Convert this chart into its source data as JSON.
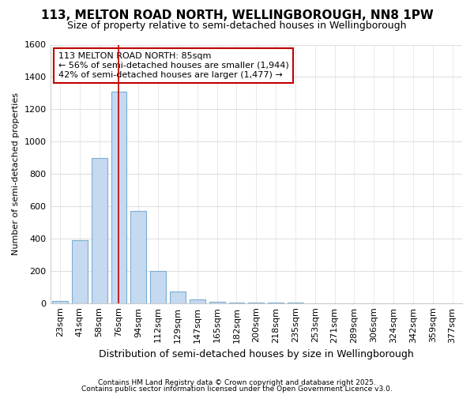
{
  "title": "113, MELTON ROAD NORTH, WELLINGBOROUGH, NN8 1PW",
  "subtitle": "Size of property relative to semi-detached houses in Wellingborough",
  "xlabel": "Distribution of semi-detached houses by size in Wellingborough",
  "ylabel": "Number of semi-detached properties",
  "categories": [
    "23sqm",
    "41sqm",
    "58sqm",
    "76sqm",
    "94sqm",
    "112sqm",
    "129sqm",
    "147sqm",
    "165sqm",
    "182sqm",
    "200sqm",
    "218sqm",
    "235sqm",
    "253sqm",
    "271sqm",
    "289sqm",
    "306sqm",
    "324sqm",
    "342sqm",
    "359sqm",
    "377sqm"
  ],
  "values": [
    15,
    390,
    900,
    1310,
    570,
    200,
    70,
    25,
    10,
    5,
    2,
    1,
    1,
    0,
    0,
    0,
    0,
    0,
    0,
    0,
    0
  ],
  "bar_facecolor": "#c5d9f0",
  "bar_edgecolor": "#7bafd4",
  "vline_x": 3,
  "vline_color": "#c00000",
  "annotation_text": "113 MELTON ROAD NORTH: 85sqm\n← 56% of semi-detached houses are smaller (1,944)\n42% of semi-detached houses are larger (1,477) →",
  "annotation_box_edgecolor": "#c00000",
  "ylim": [
    0,
    1600
  ],
  "yticks": [
    0,
    200,
    400,
    600,
    800,
    1000,
    1200,
    1400,
    1600
  ],
  "bg_color": "#ffffff",
  "plot_bg_color": "#ffffff",
  "grid_color": "#e0e0e0",
  "title_fontsize": 11,
  "subtitle_fontsize": 9,
  "tick_fontsize": 8,
  "ylabel_fontsize": 8,
  "xlabel_fontsize": 9,
  "footer1": "Contains HM Land Registry data © Crown copyright and database right 2025.",
  "footer2": "Contains public sector information licensed under the Open Government Licence v3.0."
}
